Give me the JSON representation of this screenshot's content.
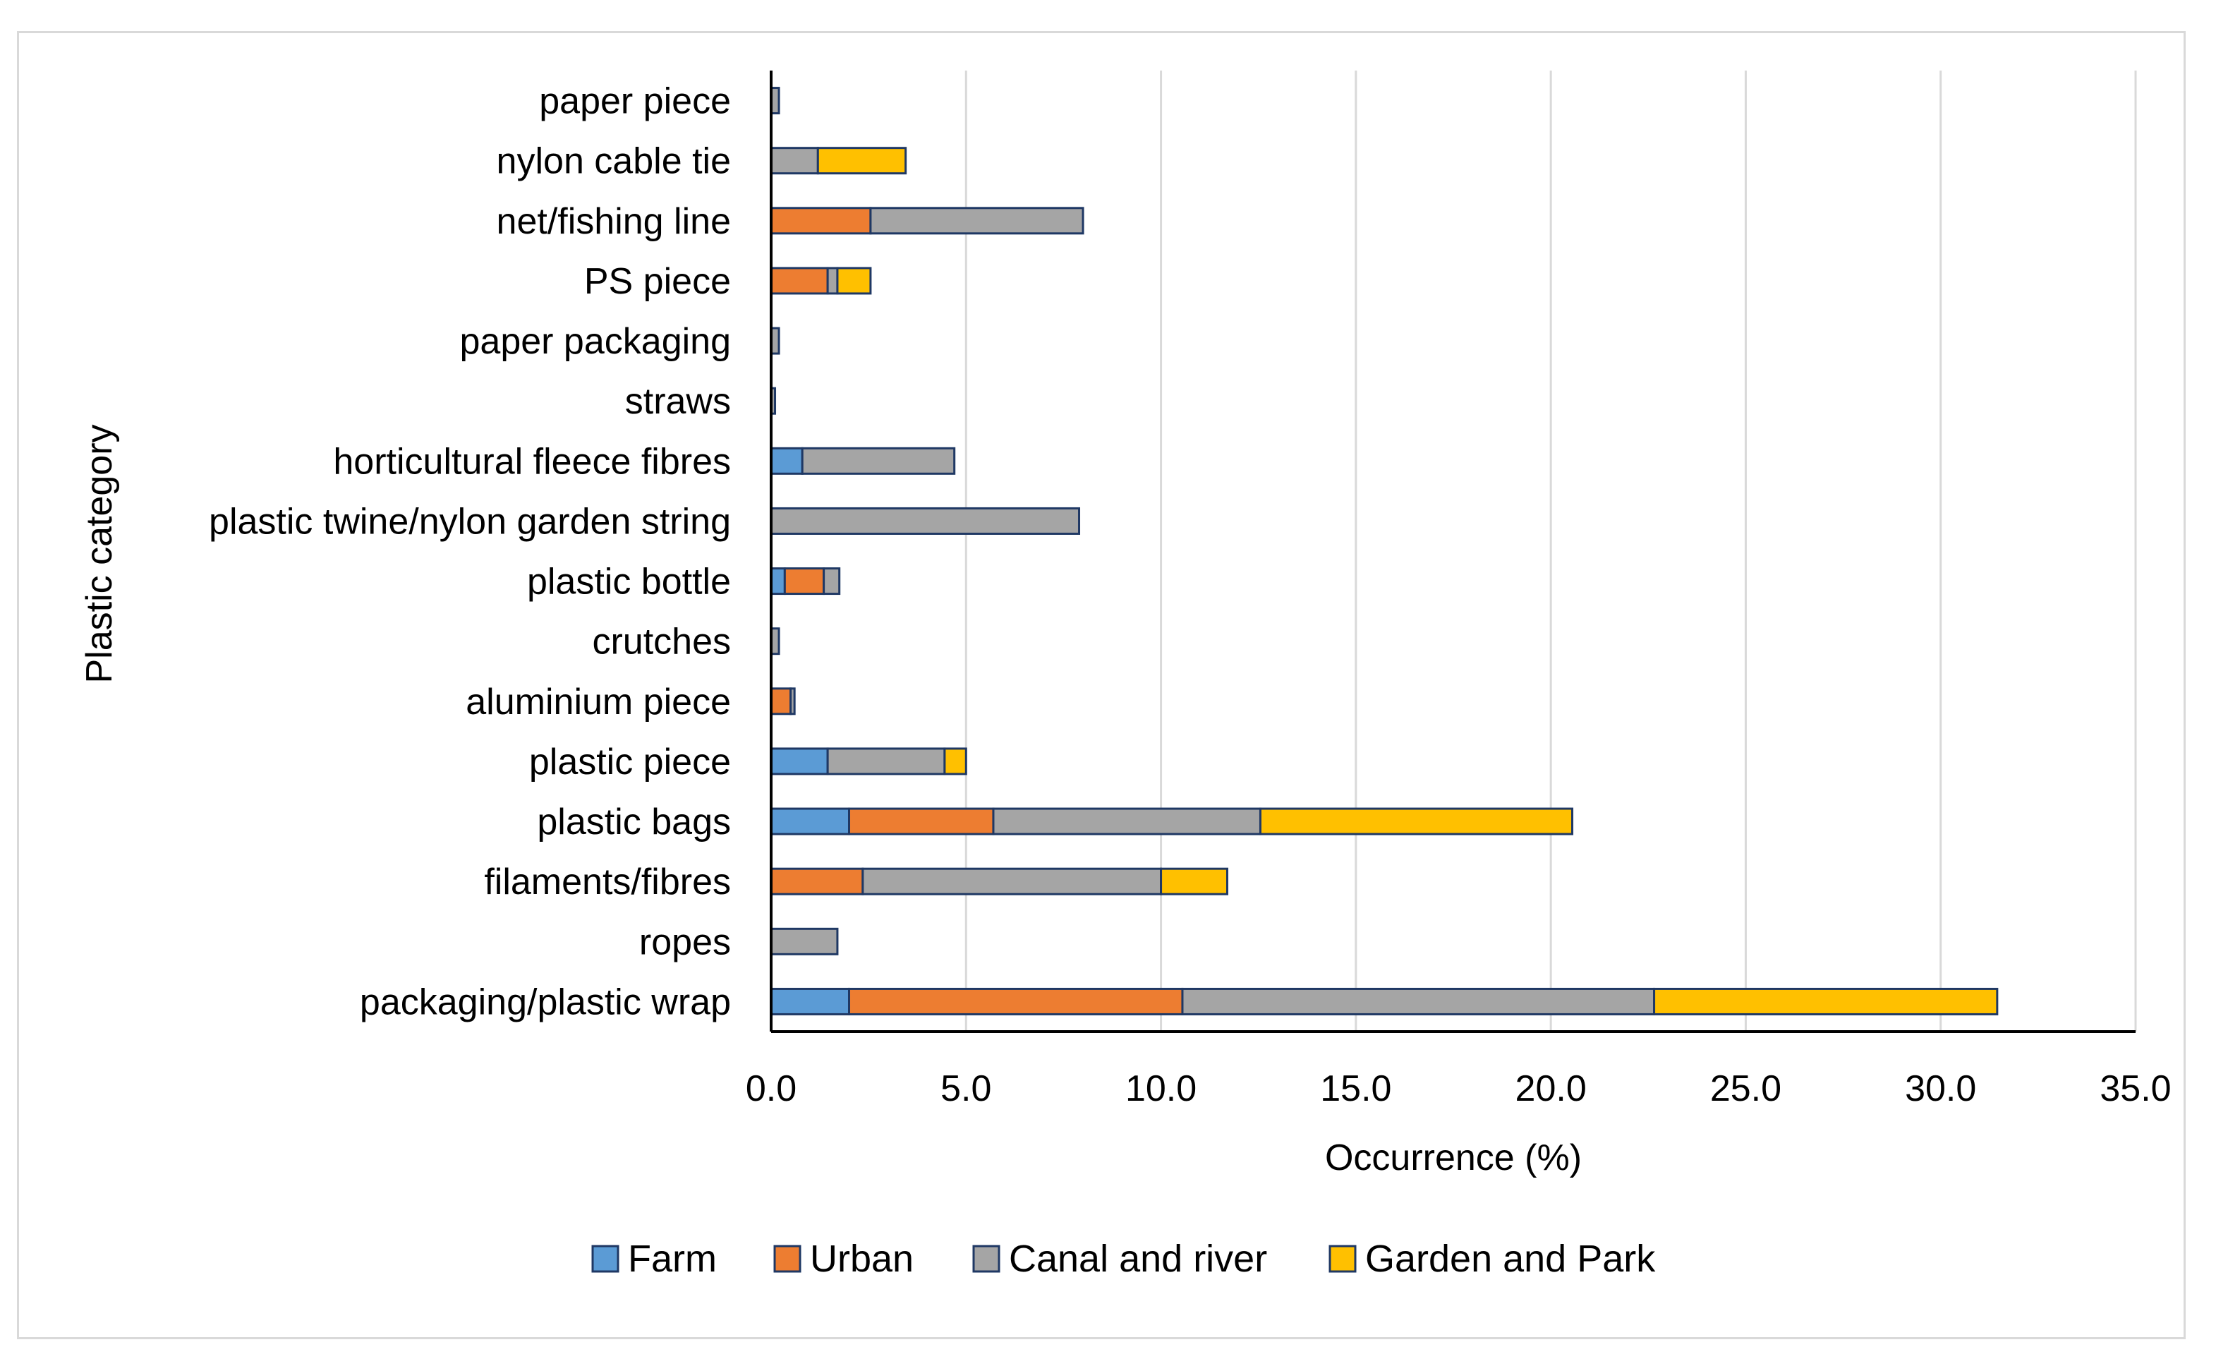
{
  "chart_data": {
    "type": "bar",
    "orientation": "horizontal",
    "stacked": true,
    "title": "",
    "xlabel": "Occurrence (%)",
    "ylabel": "Plastic category",
    "xlim": [
      0,
      35
    ],
    "xticks": [
      "0.0",
      "5.0",
      "10.0",
      "15.0",
      "20.0",
      "25.0",
      "30.0",
      "35.0"
    ],
    "grid": "vertical",
    "legend_position": "bottom",
    "categories": [
      "paper piece",
      "nylon cable tie",
      "net/fishing line",
      "PS piece",
      "paper packaging",
      "straws",
      "horticultural fleece fibres",
      "plastic twine/nylon garden string",
      "plastic bottle",
      "crutches",
      "aluminium piece",
      "plastic piece",
      "plastic bags",
      "filaments/fibres",
      "ropes",
      "packaging/plastic wrap"
    ],
    "series": [
      {
        "name": "Farm",
        "color": "#5b9bd5",
        "values": [
          0,
          0,
          0,
          0,
          0,
          0,
          0.8,
          0,
          0.35,
          0,
          0,
          1.45,
          2.0,
          0,
          0,
          2.0
        ]
      },
      {
        "name": "Urban",
        "color": "#ed7d31",
        "values": [
          0,
          0,
          2.55,
          1.45,
          0,
          0,
          0,
          0,
          1.0,
          0,
          0.5,
          0,
          3.7,
          2.35,
          0,
          8.55
        ]
      },
      {
        "name": "Canal and river",
        "color": "#a5a5a5",
        "values": [
          0.2,
          1.2,
          5.45,
          0.25,
          0.2,
          0.1,
          3.9,
          7.9,
          0.4,
          0.2,
          0.1,
          3.0,
          6.85,
          7.65,
          1.7,
          12.1
        ]
      },
      {
        "name": "Garden and Park",
        "color": "#ffc000",
        "values": [
          0,
          2.25,
          0,
          0.85,
          0,
          0,
          0,
          0,
          0,
          0,
          0,
          0.55,
          8.0,
          1.7,
          0,
          8.8
        ]
      }
    ]
  }
}
